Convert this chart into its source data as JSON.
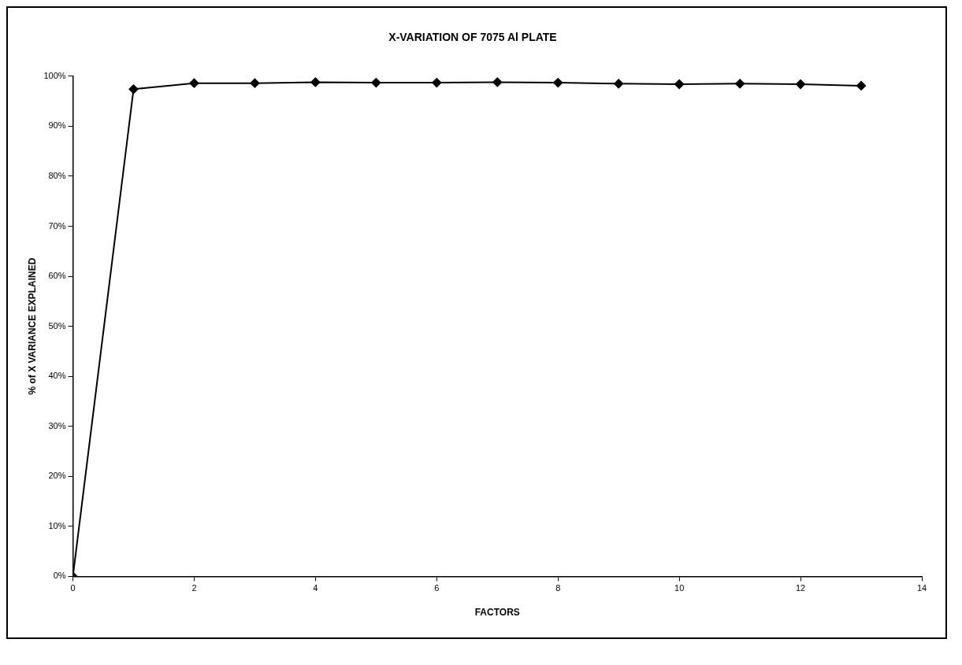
{
  "chart_data": {
    "type": "line",
    "title": "X-VARIATION OF 7075 Al PLATE",
    "xlabel": "FACTORS",
    "ylabel": "% of X VARIANCE EXPLAINED",
    "x": [
      0,
      1,
      2,
      3,
      4,
      5,
      6,
      7,
      8,
      9,
      10,
      11,
      12,
      13
    ],
    "series": [
      {
        "color": "#000000",
        "values": [
          0,
          97.4,
          98.6,
          98.6,
          98.8,
          98.7,
          98.7,
          98.8,
          98.7,
          98.5,
          98.4,
          98.5,
          98.4,
          98.1
        ]
      }
    ],
    "xlim": [
      0,
      14
    ],
    "xticks": [
      0,
      2,
      4,
      6,
      8,
      10,
      12,
      14
    ],
    "ylim": [
      0,
      100
    ],
    "yticks": [
      {
        "value": 0,
        "label": "0%"
      },
      {
        "value": 10,
        "label": "10%"
      },
      {
        "value": 20,
        "label": "20%"
      },
      {
        "value": 30,
        "label": "30%"
      },
      {
        "value": 40,
        "label": "40%"
      },
      {
        "value": 50,
        "label": "50%"
      },
      {
        "value": 60,
        "label": "60%"
      },
      {
        "value": 70,
        "label": "70%"
      },
      {
        "value": 80,
        "label": "80%"
      },
      {
        "value": 90,
        "label": "90%"
      },
      {
        "value": 100,
        "label": "100%"
      }
    ],
    "grid": false,
    "legend": false,
    "marker": "diamond",
    "line_style": "solid"
  }
}
